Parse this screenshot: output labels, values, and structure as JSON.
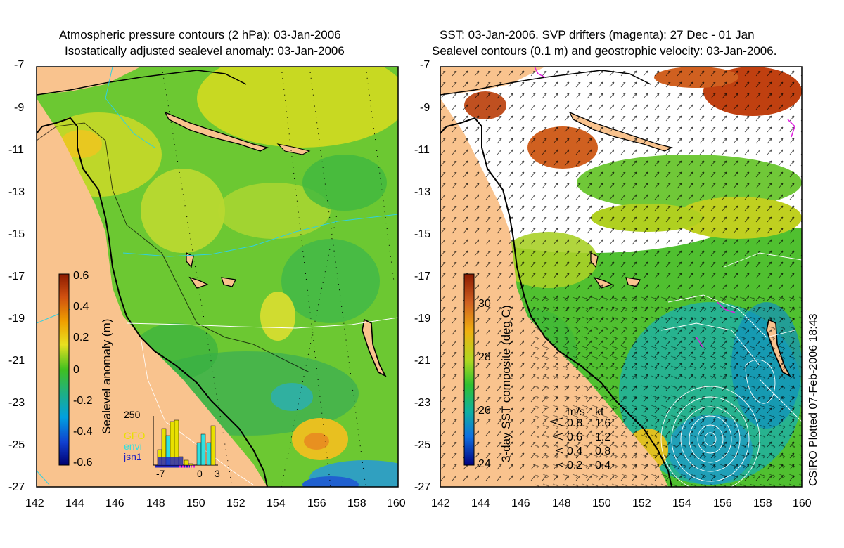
{
  "left_panel": {
    "title_line1": "Atmospheric pressure contours (2 hPa): 03-Jan-2006",
    "title_line2": "Isostatically adjusted sealevel anomaly: 03-Jan-2006",
    "colorbar_label": "Sealevel anomaly (m)",
    "colorbar_ticks": [
      "0.6",
      "0.4",
      "0.2",
      "0",
      "-0.2",
      "-0.4",
      "-0.6"
    ],
    "inset": {
      "ymax_label": "250",
      "legend": [
        {
          "name": "GFO",
          "color": "#e8e000"
        },
        {
          "name": "envi",
          "color": "#30e0e0"
        },
        {
          "name": "jsn1",
          "color": "#2020c0"
        }
      ],
      "x_ticks": [
        "-7",
        "0",
        "3"
      ]
    }
  },
  "right_panel": {
    "title_line1": "SST: 03-Jan-2006. SVP drifters (magenta): 27 Dec - 01 Jan",
    "title_line2": "Sealevel contours (0.1 m) and geostrophic velocity: 03-Jan-2006.",
    "colorbar_label": "3-day SST composite (deg C)",
    "colorbar_ticks": [
      "30",
      "28",
      "26",
      "24"
    ],
    "velocity_legend": {
      "header_ms": "m/s",
      "header_kt": "kt",
      "rows": [
        {
          "ms": "0.8",
          "kt": "1.6"
        },
        {
          "ms": "0.6",
          "kt": "1.2"
        },
        {
          "ms": "0.4",
          "kt": "0.8"
        },
        {
          "ms": "0.2",
          "kt": "0.4"
        }
      ]
    }
  },
  "axes": {
    "lat_ticks": [
      "-7",
      "-9",
      "-11",
      "-13",
      "-15",
      "-17",
      "-19",
      "-21",
      "-23",
      "-25",
      "-27"
    ],
    "lon_ticks": [
      "142",
      "144",
      "146",
      "148",
      "150",
      "152",
      "154",
      "156",
      "158",
      "160"
    ]
  },
  "stamp": "CSIRO Plotted 07-Feb-2006 18:43",
  "colors": {
    "land": "#f9c38e",
    "coast": "#000000",
    "pressure_contour": "#30d0e0",
    "no_data": "#ffffff"
  }
}
